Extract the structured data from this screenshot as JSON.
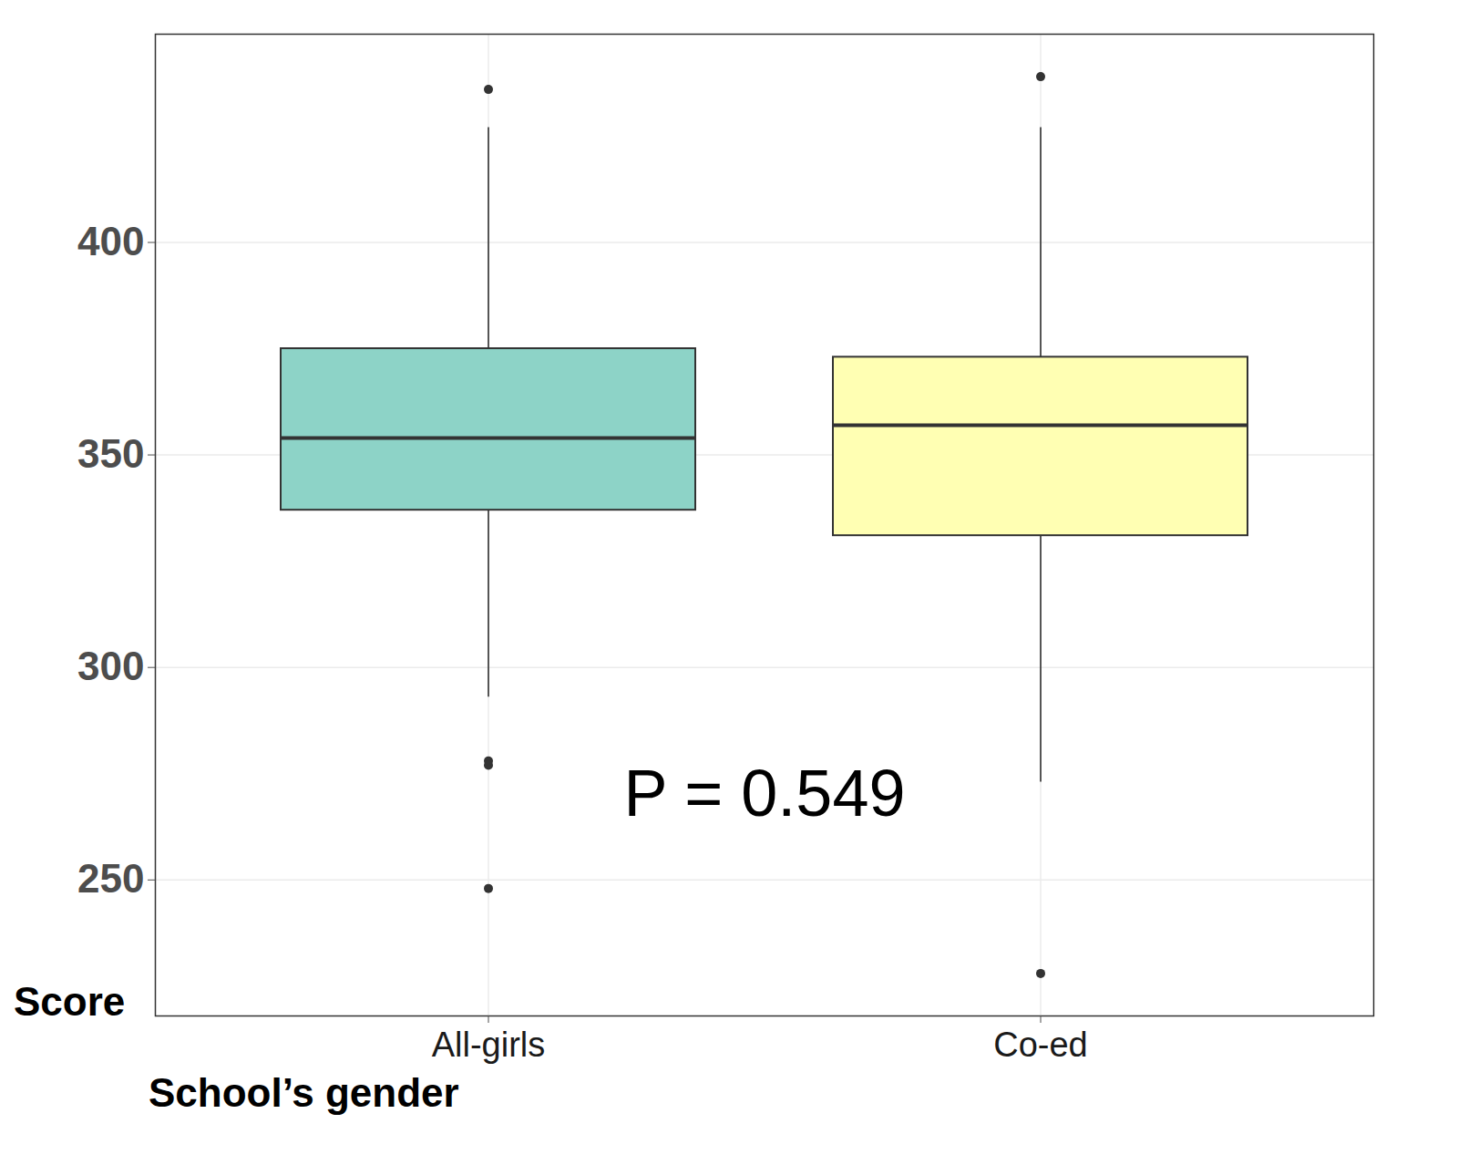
{
  "chart_data": {
    "type": "box",
    "x_label": "School’s gender",
    "y_label": "Score",
    "categories": [
      "All-girls",
      "Co-ed"
    ],
    "colors": [
      "#8dd3c7",
      "#ffffb3"
    ],
    "boxes": [
      {
        "q1": 337,
        "median": 354,
        "q3": 375,
        "whisker_low": 293,
        "whisker_high": 427,
        "outliers": [
          436,
          278,
          277,
          248
        ]
      },
      {
        "q1": 331,
        "median": 357,
        "q3": 373,
        "whisker_low": 273,
        "whisker_high": 427,
        "outliers": [
          439,
          228
        ]
      }
    ],
    "ylim": [
      218,
      449
    ],
    "yticks": [
      250,
      300,
      350,
      400
    ],
    "grid": true,
    "annotations": [
      {
        "text": "P = 0.549",
        "y": 270
      }
    ]
  }
}
